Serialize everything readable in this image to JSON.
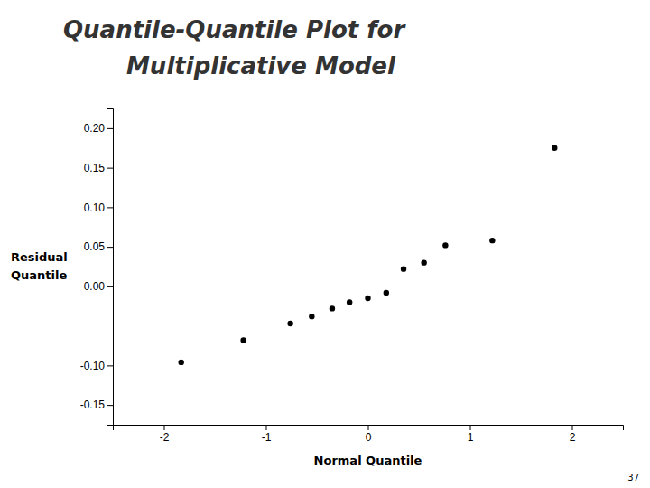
{
  "chart_data": {
    "type": "scatter",
    "title": [
      "Quantile-Quantile Plot for",
      "Multiplicative Model"
    ],
    "x_label": "Normal Quantile",
    "y_label": [
      "Residual",
      "Quantile"
    ],
    "x": [
      -1.83,
      -1.22,
      -0.76,
      -0.55,
      -0.35,
      -0.18,
      0.0,
      0.18,
      0.35,
      0.55,
      0.76,
      1.22,
      1.83
    ],
    "values": [
      -0.096,
      -0.068,
      -0.047,
      -0.038,
      -0.028,
      -0.02,
      -0.015,
      -0.008,
      0.022,
      0.03,
      0.052,
      0.058,
      0.175
    ],
    "color": "#000000",
    "xlim": [
      -2.5,
      2.5
    ],
    "ylim": [
      -0.175,
      0.225
    ],
    "xticks": [
      -2,
      -1,
      0,
      1,
      2
    ],
    "yticks": [
      -0.15,
      {
        "value": -0.1,
        "label": "-0.10"
      },
      {
        "value": 0,
        "label": "0.00"
      },
      0.05,
      {
        "value": 0.1,
        "label": "0.10"
      },
      0.15,
      {
        "value": 0.2,
        "label": "0.20"
      }
    ],
    "grid": false,
    "annotations": [
      "37"
    ]
  }
}
